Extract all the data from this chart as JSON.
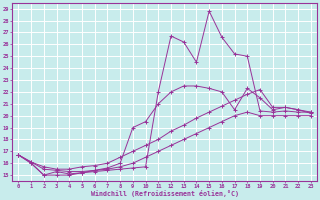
{
  "xlabel": "Windchill (Refroidissement éolien,°C)",
  "xlim": [
    -0.5,
    23.5
  ],
  "ylim": [
    14.5,
    29.5
  ],
  "xticks": [
    0,
    1,
    2,
    3,
    4,
    5,
    6,
    7,
    8,
    9,
    10,
    11,
    12,
    13,
    14,
    15,
    16,
    17,
    18,
    19,
    20,
    21,
    22,
    23
  ],
  "yticks": [
    15,
    16,
    17,
    18,
    19,
    20,
    21,
    22,
    23,
    24,
    25,
    26,
    27,
    28,
    29
  ],
  "bg_color": "#c8ecec",
  "line_color": "#993399",
  "grid_color": "#aadddd",
  "lines": [
    {
      "x": [
        0,
        1,
        2,
        3,
        4,
        5,
        6,
        7,
        8,
        9,
        10,
        11,
        12,
        13,
        14,
        15,
        16,
        17,
        18,
        19,
        20,
        21,
        22,
        23
      ],
      "y": [
        16.7,
        16.0,
        15.0,
        15.0,
        15.0,
        15.2,
        15.3,
        15.4,
        15.5,
        15.6,
        15.7,
        22.0,
        26.7,
        26.2,
        24.5,
        28.8,
        26.6,
        25.2,
        25.0,
        20.4,
        20.3,
        20.4,
        20.3,
        20.3
      ]
    },
    {
      "x": [
        0,
        1,
        2,
        3,
        4,
        5,
        6,
        7,
        8,
        9,
        10,
        11,
        12,
        13,
        14,
        15,
        16,
        17,
        18,
        19,
        20,
        21,
        22,
        23
      ],
      "y": [
        16.7,
        16.0,
        15.0,
        15.3,
        15.1,
        15.2,
        15.4,
        15.6,
        16.0,
        19.0,
        19.5,
        21.0,
        22.0,
        22.5,
        22.5,
        22.3,
        22.0,
        20.5,
        22.3,
        21.5,
        20.5,
        20.7,
        20.5,
        20.2
      ]
    },
    {
      "x": [
        0,
        1,
        2,
        3,
        4,
        5,
        6,
        7,
        8,
        9,
        10,
        11,
        12,
        13,
        14,
        15,
        16,
        17,
        18,
        19,
        20,
        21,
        22,
        23
      ],
      "y": [
        16.7,
        16.1,
        15.7,
        15.5,
        15.5,
        15.7,
        15.8,
        16.0,
        16.5,
        17.0,
        17.5,
        18.0,
        18.7,
        19.2,
        19.8,
        20.3,
        20.8,
        21.3,
        21.8,
        22.2,
        20.7,
        20.7,
        20.5,
        20.3
      ]
    },
    {
      "x": [
        0,
        1,
        2,
        3,
        4,
        5,
        6,
        7,
        8,
        9,
        10,
        11,
        12,
        13,
        14,
        15,
        16,
        17,
        18,
        19,
        20,
        21,
        22,
        23
      ],
      "y": [
        16.7,
        16.1,
        15.5,
        15.4,
        15.3,
        15.3,
        15.4,
        15.5,
        15.7,
        16.0,
        16.5,
        17.0,
        17.5,
        18.0,
        18.5,
        19.0,
        19.5,
        20.0,
        20.3,
        20.0,
        20.0,
        20.0,
        20.0,
        20.0
      ]
    }
  ]
}
